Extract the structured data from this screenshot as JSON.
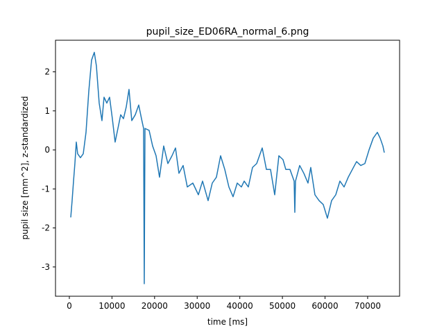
{
  "chart_data": {
    "type": "line",
    "title": "pupil_size_ED06RA_normal_6.png",
    "x_label": "time [ms]",
    "y_label": "pupil size [mm^2], z-standardized",
    "xlim": [
      -3250,
      77500
    ],
    "ylim": [
      -3.75,
      2.81
    ],
    "xticks": [
      0,
      10000,
      20000,
      30000,
      40000,
      50000,
      60000,
      70000
    ],
    "yticks": [
      -3,
      -2,
      -1,
      0,
      1,
      2
    ],
    "grid": false,
    "series": [
      {
        "color": "#1f77b4",
        "x": [
          330,
          650,
          980,
          1300,
          1630,
          1950,
          2600,
          3260,
          3910,
          4560,
          5210,
          5860,
          6350,
          7000,
          7650,
          8140,
          8790,
          9440,
          10090,
          10740,
          11400,
          12050,
          12700,
          13350,
          14000,
          14650,
          15470,
          16280,
          16930,
          17420,
          17580,
          17750,
          18720,
          19540,
          20350,
          21160,
          22140,
          23120,
          24090,
          24910,
          25720,
          26700,
          27680,
          28980,
          30280,
          31260,
          32560,
          33540,
          34510,
          35490,
          36470,
          37440,
          38420,
          39400,
          40370,
          41030,
          42000,
          42980,
          43960,
          44610,
          45260,
          46240,
          47210,
          48190,
          49170,
          50140,
          50790,
          51770,
          52750,
          52910,
          53070,
          54050,
          55030,
          56000,
          56650,
          57630,
          58610,
          59580,
          60560,
          61540,
          62520,
          63490,
          64470,
          65450,
          66420,
          67400,
          68380,
          69350,
          70330,
          71310,
          72280,
          72940,
          73580,
          73910
        ],
        "values": [
          -1.73,
          -1.3,
          -0.8,
          -0.35,
          0.2,
          -0.1,
          -0.2,
          -0.1,
          0.45,
          1.5,
          2.3,
          2.5,
          2.15,
          1.2,
          0.75,
          1.35,
          1.2,
          1.35,
          0.8,
          0.2,
          0.55,
          0.9,
          0.8,
          1.1,
          1.55,
          0.75,
          0.9,
          1.15,
          0.8,
          0.55,
          -3.43,
          0.55,
          0.5,
          0.1,
          -0.15,
          -0.7,
          0.1,
          -0.35,
          -0.15,
          0.05,
          -0.6,
          -0.4,
          -0.95,
          -0.85,
          -1.15,
          -0.8,
          -1.3,
          -0.85,
          -0.7,
          -0.15,
          -0.5,
          -0.95,
          -1.2,
          -0.85,
          -0.95,
          -0.8,
          -0.95,
          -0.45,
          -0.35,
          -0.15,
          0.05,
          -0.5,
          -0.5,
          -1.15,
          -0.15,
          -0.25,
          -0.5,
          -0.5,
          -0.8,
          -1.6,
          -0.8,
          -0.4,
          -0.6,
          -0.85,
          -0.45,
          -1.15,
          -1.3,
          -1.4,
          -1.75,
          -1.3,
          -1.15,
          -0.8,
          -0.95,
          -0.7,
          -0.5,
          -0.3,
          -0.4,
          -0.35,
          0,
          0.3,
          0.45,
          0.3,
          0.1,
          -0.07
        ]
      }
    ]
  }
}
